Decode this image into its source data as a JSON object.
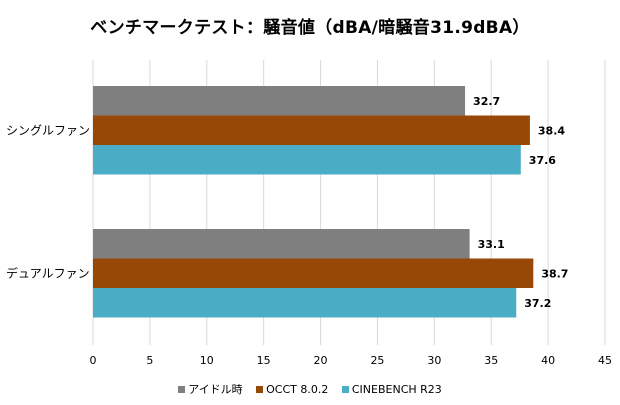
{
  "chart_data": {
    "type": "bar",
    "orientation": "horizontal",
    "title": "ベンチマークテスト：騒音値（dBA/暗騒音31.9dBA）",
    "categories": [
      "シングルファン",
      "デュアルファン"
    ],
    "series": [
      {
        "name": "アイドル時",
        "values": [
          32.7,
          33.1
        ],
        "color": "#7f7f7f"
      },
      {
        "name": "OCCT 8.0.2",
        "values": [
          38.4,
          38.7
        ],
        "color": "#974807"
      },
      {
        "name": "CINEBENCH R23",
        "values": [
          37.6,
          37.2
        ],
        "color": "#4bacc6"
      }
    ],
    "xlim": [
      0,
      45
    ],
    "xticks": [
      "0",
      "5",
      "10",
      "15",
      "20",
      "25",
      "30",
      "35",
      "40",
      "45"
    ],
    "data_labels": [
      [
        "32.7",
        "33.1"
      ],
      [
        "38.4",
        "38.7"
      ],
      [
        "37.6",
        "37.2"
      ]
    ],
    "grid": true,
    "legend_position": "bottom"
  }
}
